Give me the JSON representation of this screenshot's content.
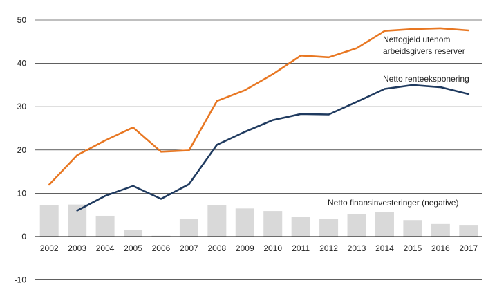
{
  "chart_data": {
    "type": "bar+line",
    "title": "",
    "xlabel": "",
    "ylabel": "",
    "ylim": [
      -10,
      50
    ],
    "yticks": [
      -10,
      0,
      10,
      20,
      30,
      40,
      50
    ],
    "grid": "horizontal",
    "legend": "none (inline annotations)",
    "categories": [
      "2002",
      "2003",
      "2004",
      "2005",
      "2006",
      "2007",
      "2008",
      "2009",
      "2010",
      "2011",
      "2012",
      "2013",
      "2014",
      "2015",
      "2016",
      "2017"
    ],
    "series": [
      {
        "name": "Netto finansinvesteringer (negative)",
        "kind": "bar",
        "color": "#d9d9d9",
        "values": [
          7.3,
          7.4,
          4.8,
          1.5,
          0.2,
          4.1,
          7.3,
          6.5,
          5.9,
          4.5,
          4.0,
          5.2,
          5.7,
          3.8,
          2.9,
          2.7
        ]
      },
      {
        "name": "Nettogjeld utenom arbeidsgivers reserver",
        "kind": "line",
        "color": "#e87722",
        "values": [
          12.0,
          18.8,
          22.2,
          25.2,
          19.6,
          19.9,
          31.3,
          33.8,
          37.5,
          41.8,
          41.4,
          43.5,
          47.5,
          47.9,
          48.1,
          47.6
        ]
      },
      {
        "name": "Netto renteeksponering",
        "kind": "line",
        "color": "#1f3a5f",
        "values": [
          null,
          6.0,
          9.4,
          11.7,
          8.7,
          12.1,
          21.2,
          24.2,
          26.9,
          28.3,
          28.2,
          31.1,
          34.1,
          35.0,
          34.5,
          32.9
        ]
      }
    ],
    "annotations": {
      "debt_line1": "Nettogjeld utenom",
      "debt_line2": "arbeidsgivers reserver",
      "exposure": "Netto renteeksponering",
      "bars": "Netto finansinvesteringer (negative)"
    }
  }
}
